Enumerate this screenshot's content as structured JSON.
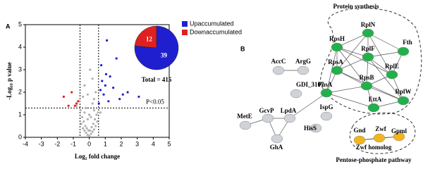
{
  "chart_data": [
    {
      "type": "scatter",
      "panel": "A",
      "x_label": "Log₂ fold change",
      "y_label": "-Log₁₀ p value",
      "xlim": [
        -4,
        5
      ],
      "xticks": [
        -4,
        -3,
        -2,
        -1,
        0,
        1,
        2,
        3,
        4,
        5
      ],
      "ylim": [
        0,
        5
      ],
      "yticks": [
        0,
        1,
        2,
        3,
        4,
        5
      ],
      "thresholds": {
        "x": [
          -0.58,
          0.58
        ],
        "y": 1.3
      },
      "annotation": "P<0.05",
      "series": [
        {
          "name": null,
          "color": "#b0b0b0",
          "x": [
            -0.5,
            -0.4,
            -0.3,
            -0.2,
            -0.1,
            0,
            0.1,
            0.2,
            0.3,
            0.4,
            0.5,
            -0.45,
            -0.35,
            -0.25,
            -0.15,
            -0.05,
            0.05,
            0.15,
            0.25,
            0.35,
            0.45,
            -0.3,
            -0.1,
            0.1,
            0.3,
            -0.2,
            0,
            0.2,
            -0.55,
            0.55,
            -0.4,
            0.4,
            -0.6,
            -0.8,
            0.7,
            -0.3,
            0.2,
            -0.1,
            0.05,
            0.3
          ],
          "values": [
            0.6,
            0.4,
            0.3,
            0.2,
            0.1,
            0.05,
            0.15,
            0.25,
            0.35,
            0.5,
            0.7,
            0.9,
            0.7,
            0.5,
            0.4,
            0.3,
            0.3,
            0.45,
            0.6,
            0.8,
            1.0,
            1.1,
            0.8,
            0.9,
            1.2,
            1.3,
            1.0,
            1.5,
            1.2,
            1.1,
            1.8,
            2.0,
            1.6,
            1.4,
            1.1,
            2.3,
            2.6,
            1.9,
            3.0,
            1.7
          ]
        },
        {
          "name": "Upaccumulated",
          "color": "#1f1fd0",
          "x": [
            0.6,
            0.7,
            0.8,
            0.9,
            1.0,
            1.1,
            1.2,
            1.3,
            1.5,
            1.7,
            1.9,
            2.1,
            2.4,
            3.1,
            0.75,
            1.05
          ],
          "values": [
            1.5,
            2.1,
            2.5,
            1.9,
            2.3,
            4.3,
            1.6,
            2.7,
            2.2,
            3.5,
            1.7,
            1.9,
            2.0,
            1.8,
            3.2,
            2.8
          ]
        },
        {
          "name": "Downaccumulated",
          "color": "#e02020",
          "x": [
            -0.7,
            -0.9,
            -1.1,
            -1.3,
            -1.6,
            -0.8
          ],
          "values": [
            1.6,
            1.4,
            2.0,
            1.4,
            1.8,
            1.5
          ]
        }
      ]
    },
    {
      "type": "pie",
      "categories": [
        "Upaccumulated",
        "Downaccumulated"
      ],
      "values": [
        39,
        12
      ],
      "colors": [
        "#1f1fd0",
        "#e02020"
      ],
      "annotation": "Total = 415"
    }
  ],
  "network": {
    "panel": "B",
    "groups": [
      "Protein synthesis",
      "Pentose-phosphate pathway"
    ],
    "nodes": [
      "RpsH",
      "RplN",
      "RplF",
      "Fth",
      "RpsA",
      "RplE",
      "RpsB",
      "RplW",
      "EttA",
      "FusA",
      "AccC",
      "ArgG",
      "GDI_3107",
      "MetE",
      "GcvP",
      "LpdA",
      "GhA",
      "IspG",
      "HisS",
      "Gnd",
      "Zwf",
      "Gpml",
      "Zwf homolog"
    ]
  }
}
